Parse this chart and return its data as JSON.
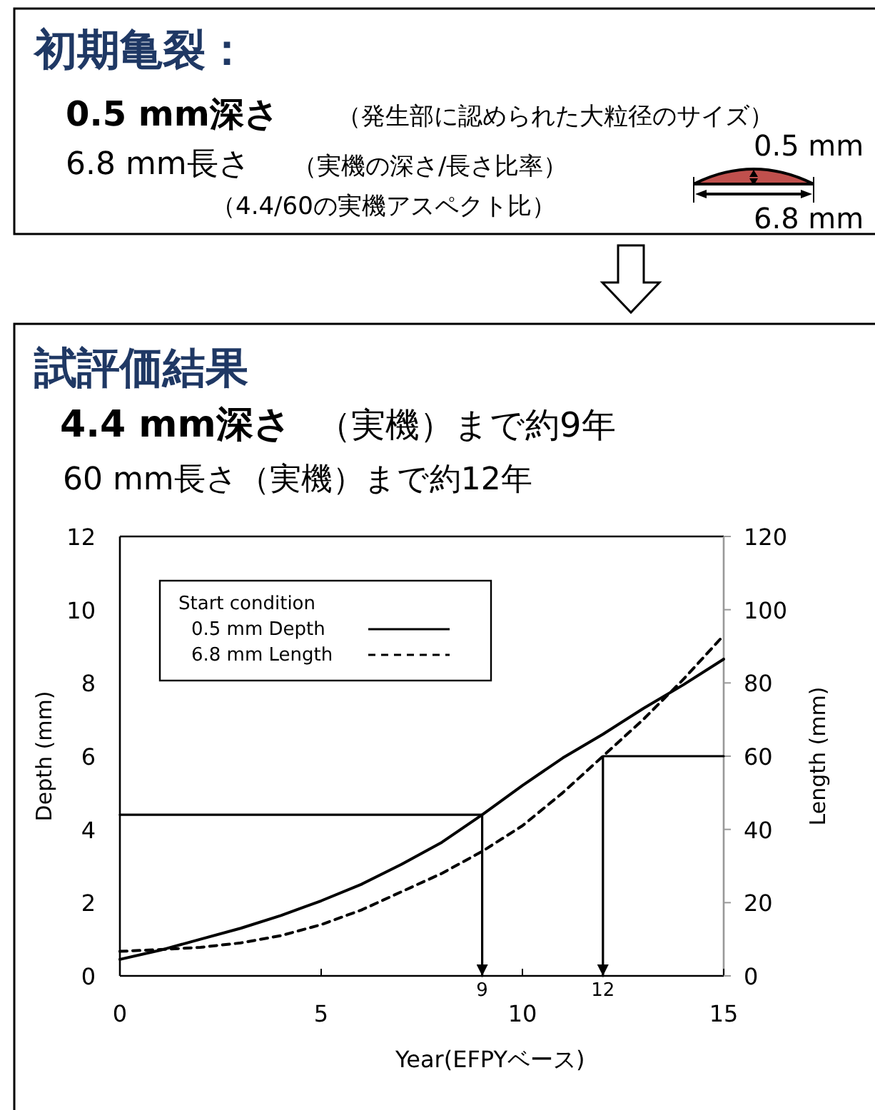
{
  "chart_data": {
    "type": "line",
    "title": "試評価結果",
    "annotations": [
      "初期亀裂：",
      "0.5 mm深さ",
      "（発生部に認められた大粒径のサイズ）",
      "6.8 mm長さ",
      "（実機の深さ/長さ比率）",
      "（4.4/60の実機アスペクト比）",
      "0.5 mm",
      "6.8 mm",
      "4.4 mm深さ",
      "（実機）まで約9年",
      "60 mm長さ（実機）まで約12年",
      {
        "text": "9",
        "x": 9,
        "y": 0
      },
      {
        "text": "12",
        "x": 12,
        "y": 0
      }
    ],
    "xlabel": "Year(EFPYベース)",
    "ylabel": "Depth (mm)",
    "y2label": "Length (mm)",
    "legend_title": "Start condition",
    "legend": "top left",
    "xlim": [
      0,
      15
    ],
    "xticks": [
      0,
      5,
      10,
      15
    ],
    "ylim": [
      0,
      12
    ],
    "yticks": [
      0,
      2,
      4,
      6,
      8,
      10,
      12
    ],
    "y2lim": [
      0,
      120
    ],
    "y2ticks": [
      0,
      20,
      40,
      60,
      80,
      100,
      120
    ],
    "series": [
      {
        "name": "0.5 mm Depth",
        "color": "#000000",
        "line_style": "solid",
        "x": [
          0,
          1,
          2,
          3,
          4,
          5,
          6,
          7,
          8,
          9,
          10,
          11,
          12,
          13,
          14,
          15
        ],
        "values": [
          0.45,
          0.7,
          1.0,
          1.3,
          1.65,
          2.05,
          2.5,
          3.05,
          3.65,
          4.4,
          5.2,
          5.95,
          6.6,
          7.3,
          7.95,
          8.65
        ]
      },
      {
        "name": "6.8 mm Length",
        "color": "#000000",
        "line_style": "dashed",
        "axis": "y2",
        "x": [
          0,
          1,
          2,
          3,
          4,
          5,
          6,
          7,
          8,
          9,
          10,
          11,
          12,
          13,
          14,
          15
        ],
        "values": [
          6.7,
          7.2,
          7.8,
          9,
          11,
          14,
          18,
          23,
          28,
          34,
          41,
          50,
          60,
          70,
          81,
          93
        ]
      },
      {
        "type": "line",
        "color": "#000000",
        "line_style": "solid",
        "x": [
          0,
          9,
          9
        ],
        "values": [
          4.4,
          4.4,
          0
        ]
      },
      {
        "type": "line",
        "color": "#000000",
        "line_style": "solid",
        "axis": "y2",
        "x": [
          15,
          12,
          12
        ],
        "values": [
          60,
          60,
          0
        ]
      }
    ]
  }
}
